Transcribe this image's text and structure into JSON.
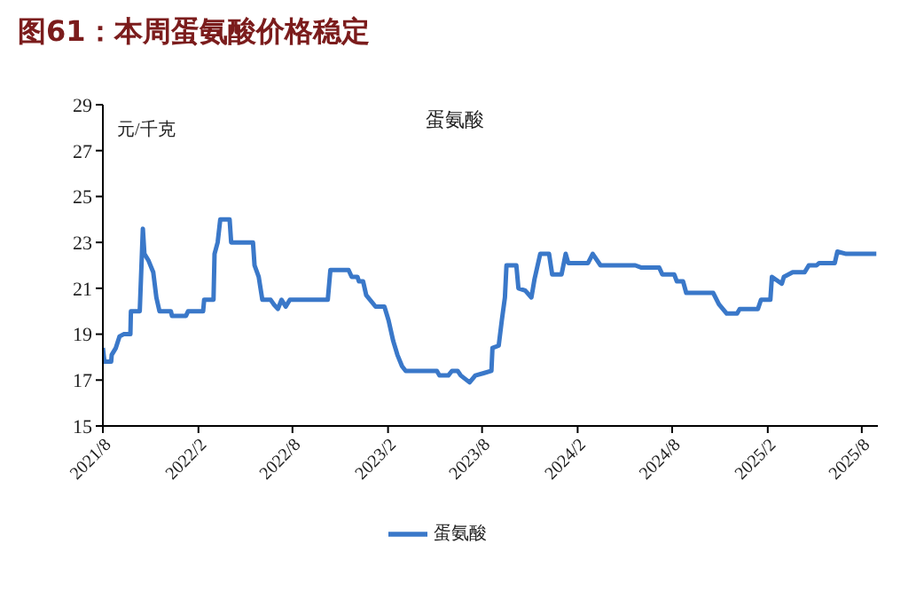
{
  "chart_data": {
    "type": "line",
    "title": "图61：本周蛋氨酸价格稳定",
    "subtitle": "蛋氨酸",
    "ylabel": "元/千克",
    "x": [
      "2021-08-01",
      "2021-08-04",
      "2021-08-17",
      "2021-08-18",
      "2021-08-26",
      "2021-09-02",
      "2021-09-10",
      "2021-09-23",
      "2021-09-24",
      "2021-10-11",
      "2021-10-17",
      "2021-10-20",
      "2021-10-28",
      "2021-11-06",
      "2021-11-12",
      "2021-11-18",
      "2021-12-10",
      "2021-12-12",
      "2022-01-08",
      "2022-01-12",
      "2022-02-10",
      "2022-02-12",
      "2022-03-02",
      "2022-03-04",
      "2022-03-10",
      "2022-03-15",
      "2022-04-02",
      "2022-04-05",
      "2022-05-17",
      "2022-05-20",
      "2022-05-28",
      "2022-06-04",
      "2022-06-20",
      "2022-06-26",
      "2022-07-04",
      "2022-07-11",
      "2022-07-19",
      "2022-07-27",
      "2022-10-08",
      "2022-10-13",
      "2022-11-17",
      "2022-11-23",
      "2022-12-04",
      "2022-12-07",
      "2022-12-15",
      "2022-12-21",
      "2023-01-08",
      "2023-01-25",
      "2023-02-02",
      "2023-02-11",
      "2023-02-19",
      "2023-02-28",
      "2023-03-07",
      "2023-05-06",
      "2023-05-11",
      "2023-05-28",
      "2023-06-04",
      "2023-06-15",
      "2023-06-21",
      "2023-07-08",
      "2023-07-19",
      "2023-08-04",
      "2023-08-19",
      "2023-08-21",
      "2023-09-02",
      "2023-09-08",
      "2023-09-14",
      "2023-09-17",
      "2023-10-06",
      "2023-10-10",
      "2023-10-23",
      "2023-11-04",
      "2023-11-10",
      "2023-11-21",
      "2023-12-08",
      "2023-12-14",
      "2024-01-01",
      "2024-01-09",
      "2024-01-14",
      "2024-02-21",
      "2024-03-01",
      "2024-03-16",
      "2024-05-22",
      "2024-06-03",
      "2024-07-07",
      "2024-07-13",
      "2024-08-05",
      "2024-08-10",
      "2024-08-22",
      "2024-08-28",
      "2024-10-19",
      "2024-10-30",
      "2024-11-14",
      "2024-12-04",
      "2024-12-09",
      "2025-01-13",
      "2025-01-19",
      "2025-02-06",
      "2025-02-09",
      "2025-02-28",
      "2025-03-04",
      "2025-03-21",
      "2025-04-13",
      "2025-04-21",
      "2025-05-06",
      "2025-05-11",
      "2025-06-10",
      "2025-06-15",
      "2025-07-02",
      "2025-08-29"
    ],
    "series": [
      {
        "name": "蛋氨酸",
        "color": "#3a78c9",
        "values": [
          18.4,
          17.8,
          17.8,
          18.1,
          18.4,
          18.9,
          19.0,
          19.0,
          20.0,
          20.0,
          23.6,
          22.5,
          22.2,
          21.7,
          20.6,
          20.0,
          20.0,
          19.8,
          19.8,
          20.0,
          20.0,
          20.5,
          20.5,
          22.5,
          23.0,
          24.0,
          24.0,
          23.0,
          23.0,
          22.0,
          21.5,
          20.5,
          20.5,
          20.3,
          20.1,
          20.5,
          20.2,
          20.5,
          20.5,
          21.8,
          21.8,
          21.5,
          21.5,
          21.3,
          21.3,
          20.7,
          20.2,
          20.2,
          19.6,
          18.7,
          18.1,
          17.6,
          17.4,
          17.4,
          17.2,
          17.2,
          17.4,
          17.4,
          17.2,
          16.9,
          17.2,
          17.3,
          17.4,
          18.4,
          18.5,
          19.6,
          20.6,
          22.0,
          22.0,
          21.0,
          20.9,
          20.6,
          21.4,
          22.5,
          22.5,
          21.6,
          21.6,
          22.5,
          22.1,
          22.1,
          22.5,
          22.0,
          22.0,
          21.9,
          21.9,
          21.6,
          21.6,
          21.3,
          21.3,
          20.8,
          20.8,
          20.3,
          19.9,
          19.9,
          20.1,
          20.1,
          20.5,
          20.5,
          21.5,
          21.2,
          21.5,
          21.7,
          21.7,
          22.0,
          22.0,
          22.1,
          22.1,
          22.6,
          22.5,
          22.5
        ]
      }
    ],
    "xlim": [
      "2021-08-01",
      "2025-09-01"
    ],
    "xticks": [
      {
        "value": "2021-08",
        "label": "2021/8"
      },
      {
        "value": "2022-02",
        "label": "2022/2"
      },
      {
        "value": "2022-08",
        "label": "2022/8"
      },
      {
        "value": "2023-02",
        "label": "2023/2"
      },
      {
        "value": "2023-08",
        "label": "2023/8"
      },
      {
        "value": "2024-02",
        "label": "2024/2"
      },
      {
        "value": "2024-08",
        "label": "2024/8"
      },
      {
        "value": "2025-02",
        "label": "2025/2"
      },
      {
        "value": "2025-08",
        "label": "2025/8"
      }
    ],
    "ylim": [
      15,
      29
    ],
    "yticks": [
      15,
      17,
      19,
      21,
      23,
      25,
      27,
      29
    ],
    "legend": "bottom",
    "marker": "none",
    "line_style": "solid"
  }
}
